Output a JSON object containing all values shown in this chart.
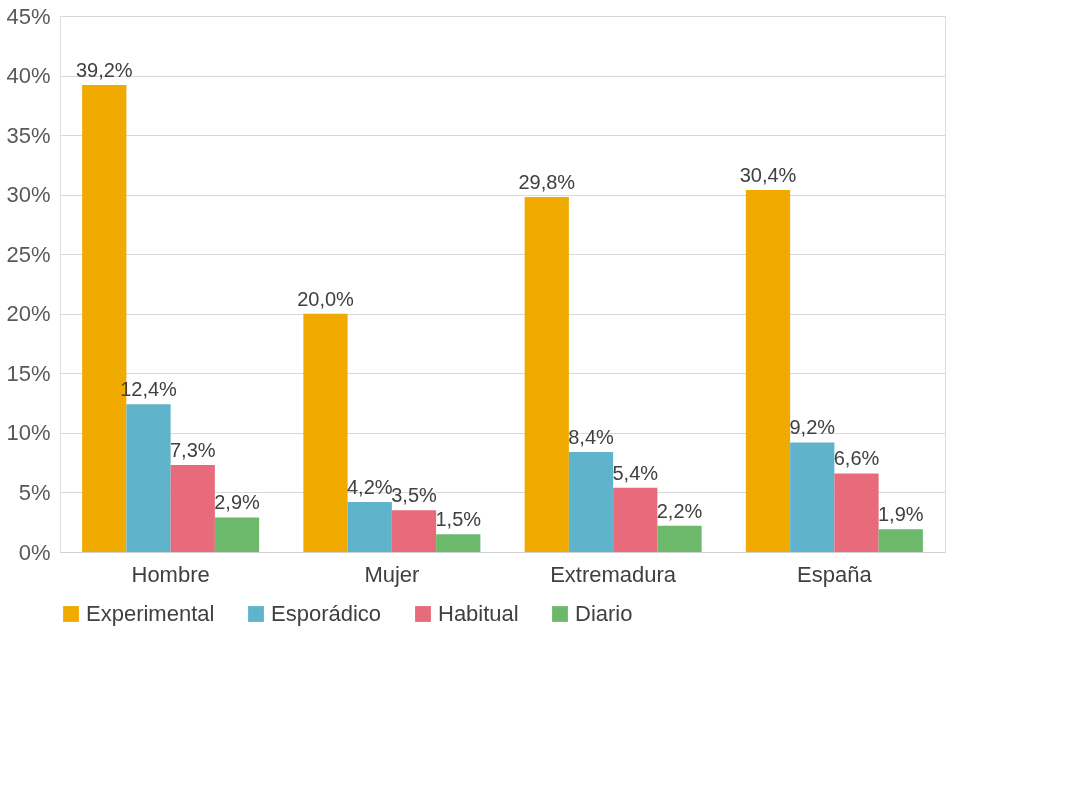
{
  "chart_data": {
    "type": "bar",
    "categories": [
      "Hombre",
      "Mujer",
      "Extremadura",
      "España"
    ],
    "series": [
      {
        "name": "Experimental",
        "color": "#f0aa00",
        "values": [
          39.2,
          20.0,
          29.8,
          30.4
        ],
        "value_labels": [
          "39,2%",
          "20,0%",
          "29,8%",
          "30,4%"
        ]
      },
      {
        "name": "Esporádico",
        "color": "#5fb4cb",
        "values": [
          12.4,
          4.2,
          8.4,
          9.2
        ],
        "value_labels": [
          "12,4%",
          "4,2%",
          "8,4%",
          "9,2%"
        ]
      },
      {
        "name": "Habitual",
        "color": "#e76b7b",
        "values": [
          7.3,
          3.5,
          5.4,
          6.6
        ],
        "value_labels": [
          "7,3%",
          "3,5%",
          "5,4%",
          "6,6%"
        ]
      },
      {
        "name": "Diario",
        "color": "#6cb96c",
        "values": [
          2.9,
          1.5,
          2.2,
          1.9
        ],
        "value_labels": [
          "2,9%",
          "1,5%",
          "2,2%",
          "1,9%"
        ]
      }
    ],
    "ylim": [
      0,
      45
    ],
    "yticks": [
      {
        "value": 0,
        "label": "0%"
      },
      {
        "value": 5,
        "label": "5%"
      },
      {
        "value": 10,
        "label": "10%"
      },
      {
        "value": 15,
        "label": "15%"
      },
      {
        "value": 20,
        "label": "20%"
      },
      {
        "value": 25,
        "label": "25%"
      },
      {
        "value": 30,
        "label": "30%"
      },
      {
        "value": 35,
        "label": "35%"
      },
      {
        "value": 40,
        "label": "40%"
      },
      {
        "value": 45,
        "label": "45%"
      }
    ],
    "grid": "y",
    "legend": "bottom"
  }
}
